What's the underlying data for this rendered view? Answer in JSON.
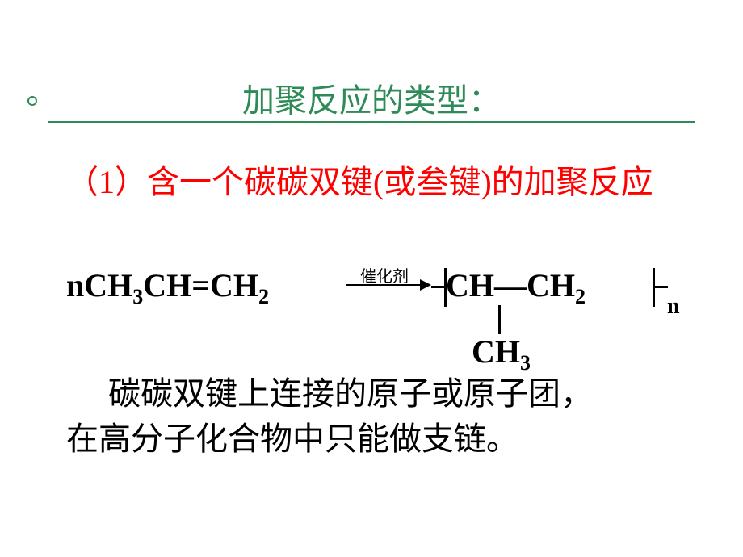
{
  "colors": {
    "title_color": "#2e8b57",
    "subtitle_color": "#ff0000",
    "body_color": "#000000",
    "background": "#ffffff"
  },
  "typography": {
    "title_fontsize": 40,
    "subtitle_fontsize": 40,
    "body_fontsize": 40,
    "reaction_fontsize": 40,
    "subscript_fontsize": 26,
    "catalyst_fontsize": 20,
    "title_font": "KaiTi",
    "body_font": "SimSun",
    "formula_font": "Times New Roman"
  },
  "title": "加聚反应的类型：",
  "subtitle": {
    "num": "（1）",
    "text_a": "含一个碳碳双键",
    "text_b": "(或叁键)",
    "text_c": "的加聚反应"
  },
  "reaction": {
    "coefficient": "n",
    "reactant_parts": [
      "CH",
      "3",
      "CH=CH",
      "2"
    ],
    "catalyst": "催化剂",
    "product_parts": [
      "CH—CH",
      "2"
    ],
    "branch_parts": [
      "CH",
      "3"
    ],
    "subscript_n": "n"
  },
  "body": {
    "line1": "碳碳双键上连接的原子或原子团，",
    "line2": "在高分子化合物中只能做支链。"
  }
}
